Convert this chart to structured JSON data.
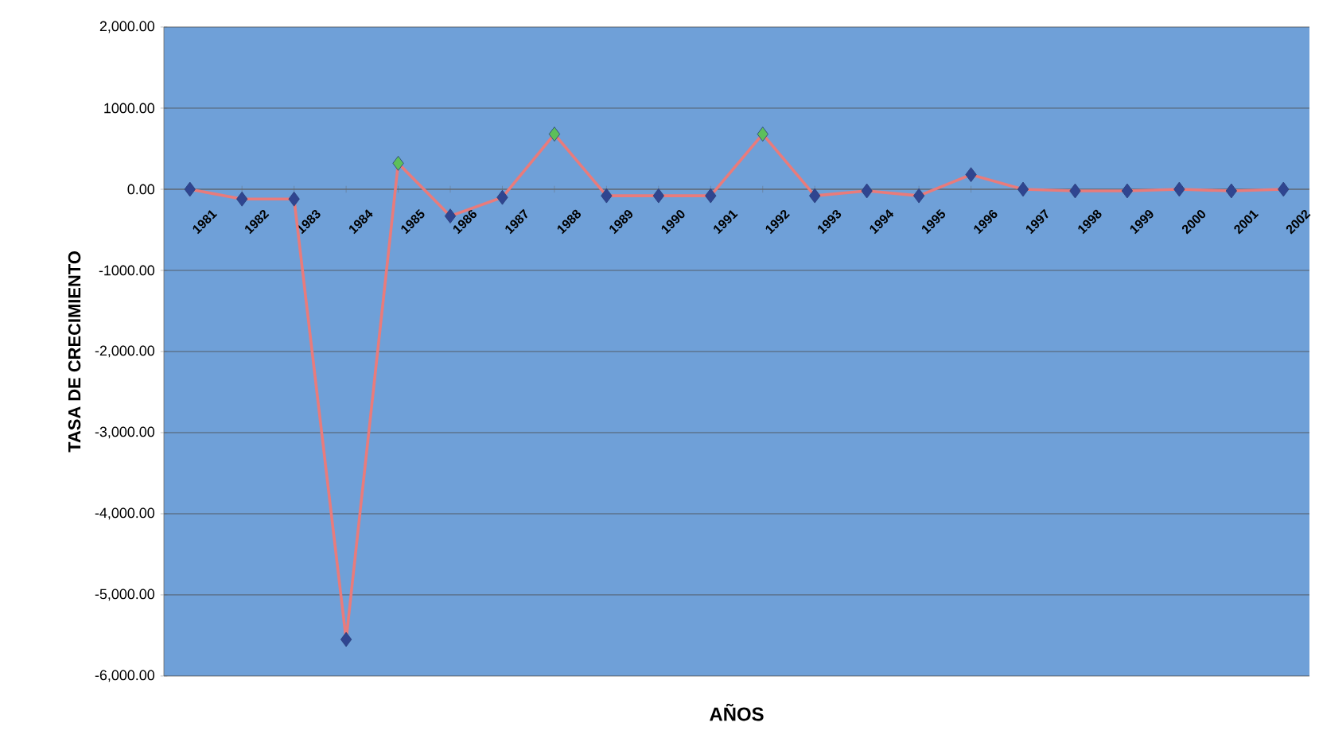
{
  "chart_data": {
    "type": "line",
    "xlabel": "AÑOS",
    "ylabel": "TASA DE CRECIMIENTO",
    "categories": [
      "1981",
      "1982",
      "1983",
      "1984",
      "1985",
      "1986",
      "1987",
      "1988",
      "1989",
      "1990",
      "1991",
      "1992",
      "1993",
      "1994",
      "1995",
      "1996",
      "1997",
      "1998",
      "1999",
      "2000",
      "2001",
      "2002"
    ],
    "series": [
      {
        "color": "#e97b7b",
        "values": [
          0,
          -120,
          -120,
          -5550,
          320,
          -330,
          -100,
          680,
          -80,
          -80,
          -80,
          680,
          -80,
          -20,
          -80,
          180,
          0,
          -20,
          -20,
          0,
          -20,
          0
        ],
        "colors": [
          "#2f4590",
          "#2f4590",
          "#2f4590",
          "#2f4590",
          "#5dbf5a",
          "#2f4590",
          "#2f4590",
          "#5dbf5a",
          "#2f4590",
          "#2f4590",
          "#2f4590",
          "#5dbf5a",
          "#2f4590",
          "#2f4590",
          "#2f4590",
          "#2f4590",
          "#2f4590",
          "#2f4590",
          "#2f4590",
          "#2f4590",
          "#2f4590",
          "#2f4590"
        ]
      }
    ],
    "ylim": [
      -6000,
      2000
    ],
    "yticks": [
      {
        "value": 2000,
        "label": "2,000.00"
      },
      {
        "value": 1000,
        "label": "1000.00"
      },
      {
        "value": 0,
        "label": "0.00"
      },
      {
        "value": -1000,
        "label": "-1000.00"
      },
      {
        "value": -2000,
        "label": "-2,000.00"
      },
      {
        "value": -3000,
        "label": "-3,000.00"
      },
      {
        "value": -4000,
        "label": "-4,000.00"
      },
      {
        "value": -5000,
        "label": "-5,000.00"
      },
      {
        "value": -6000,
        "label": "-6,000.00"
      }
    ],
    "grid": "y",
    "marker": "diamond",
    "line_style": "solid"
  }
}
